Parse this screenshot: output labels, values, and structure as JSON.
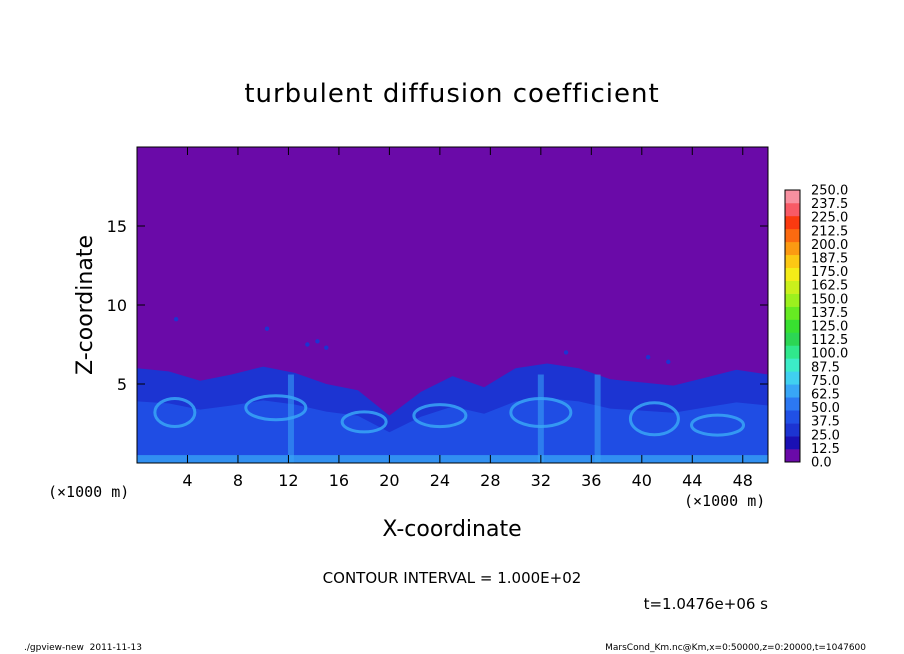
{
  "chart_data": {
    "type": "heatmap",
    "title": "turbulent diffusion coefficient",
    "xlabel": "X-coordinate",
    "ylabel": "Z-coordinate",
    "x_unit": "(×1000 m)",
    "y_unit": "(×1000 m)",
    "xlim": [
      0,
      50
    ],
    "ylim": [
      0,
      20
    ],
    "x_ticks": [
      4,
      8,
      12,
      16,
      20,
      24,
      28,
      32,
      36,
      40,
      44,
      48
    ],
    "y_ticks": [
      5,
      10,
      15
    ],
    "colorbar": {
      "levels": [
        "0.0",
        "12.5",
        "25.0",
        "37.5",
        "50.0",
        "62.5",
        "75.0",
        "87.5",
        "100.0",
        "112.5",
        "125.0",
        "137.5",
        "150.0",
        "162.5",
        "175.0",
        "187.5",
        "200.0",
        "212.5",
        "225.0",
        "237.5",
        "250.0"
      ],
      "colors": [
        "#6a0aa8",
        "#1a10b4",
        "#1c34d2",
        "#2050e6",
        "#2c78f2",
        "#38a6f6",
        "#40d0f0",
        "#3cecc8",
        "#30e88c",
        "#2cd654",
        "#38e030",
        "#66ea22",
        "#9cf01e",
        "#caf01c",
        "#f4ec18",
        "#fcc814",
        "#fc9a12",
        "#fc6a10",
        "#fa3a10",
        "#f85a66",
        "#f890a0"
      ]
    },
    "background_value_color": "#6a0aa8",
    "boundary_layer_top_km": [
      6.0,
      5.8,
      5.2,
      5.6,
      6.1,
      5.7,
      5.0,
      4.6,
      3.0,
      4.5,
      5.5,
      4.8,
      6.0,
      6.3,
      6.0,
      5.3,
      5.1,
      4.9,
      5.4,
      5.9,
      5.6
    ]
  },
  "contour_interval": "CONTOUR INTERVAL = 1.000E+02",
  "time_label": "t=1.0476e+06 s",
  "footer_left": "./gpview-new  2011-11-13",
  "footer_right": "MarsCond_Km.nc@Km,x=0:50000,z=0:20000,t=1047600"
}
